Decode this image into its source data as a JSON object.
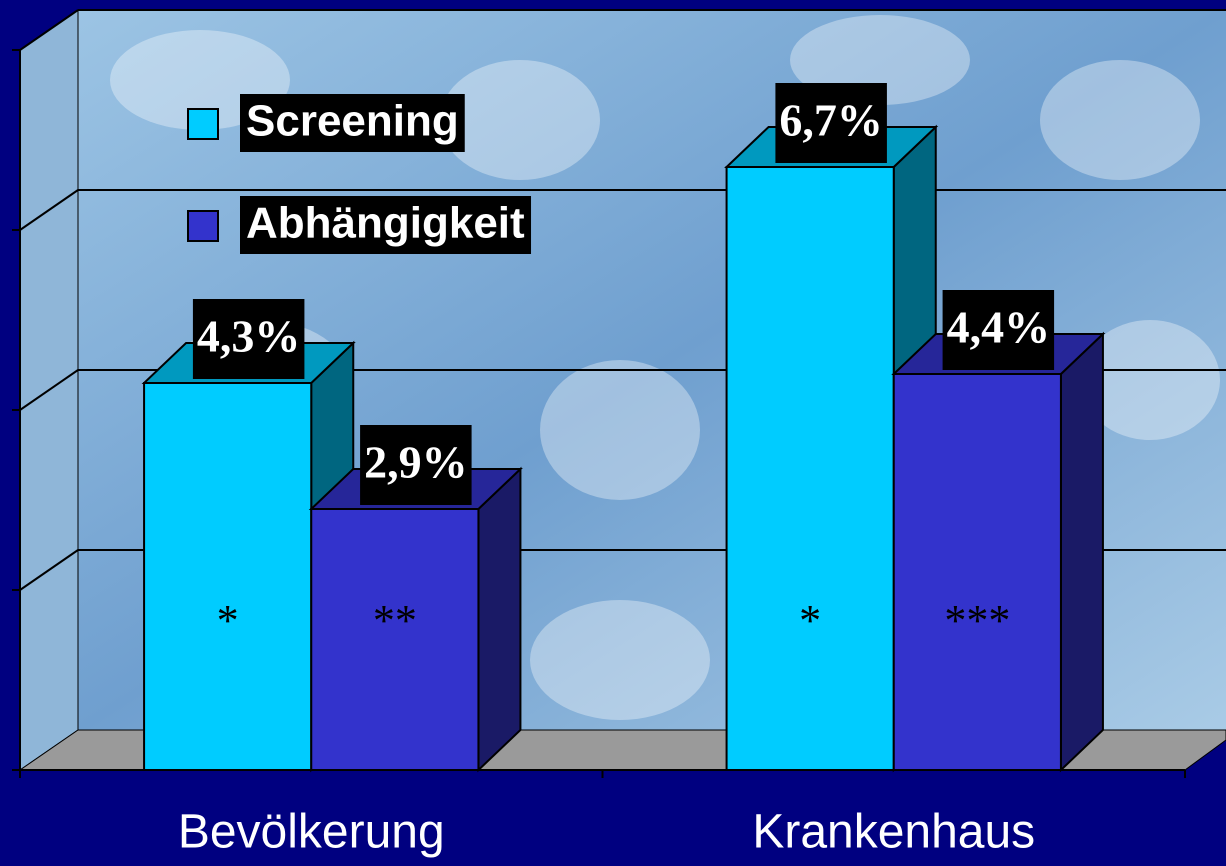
{
  "chart_data": {
    "type": "bar3d",
    "categories": [
      "Bevölkerung",
      "Krankenhaus"
    ],
    "series": [
      {
        "name": "Screening",
        "color": "#00ccff",
        "values": [
          4.3,
          6.7
        ],
        "value_labels": [
          "4,3%",
          "6,7%"
        ],
        "notes": [
          "*",
          "*"
        ]
      },
      {
        "name": "Abhängigkeit",
        "color": "#3333cc",
        "values": [
          2.9,
          4.4
        ],
        "value_labels": [
          "2,9%",
          "4,4%"
        ],
        "notes": [
          "**",
          "***"
        ]
      }
    ],
    "ylim": [
      0,
      8
    ],
    "yticks": [
      0,
      2,
      4,
      6,
      8
    ],
    "grid": true,
    "legend": "top-left"
  }
}
